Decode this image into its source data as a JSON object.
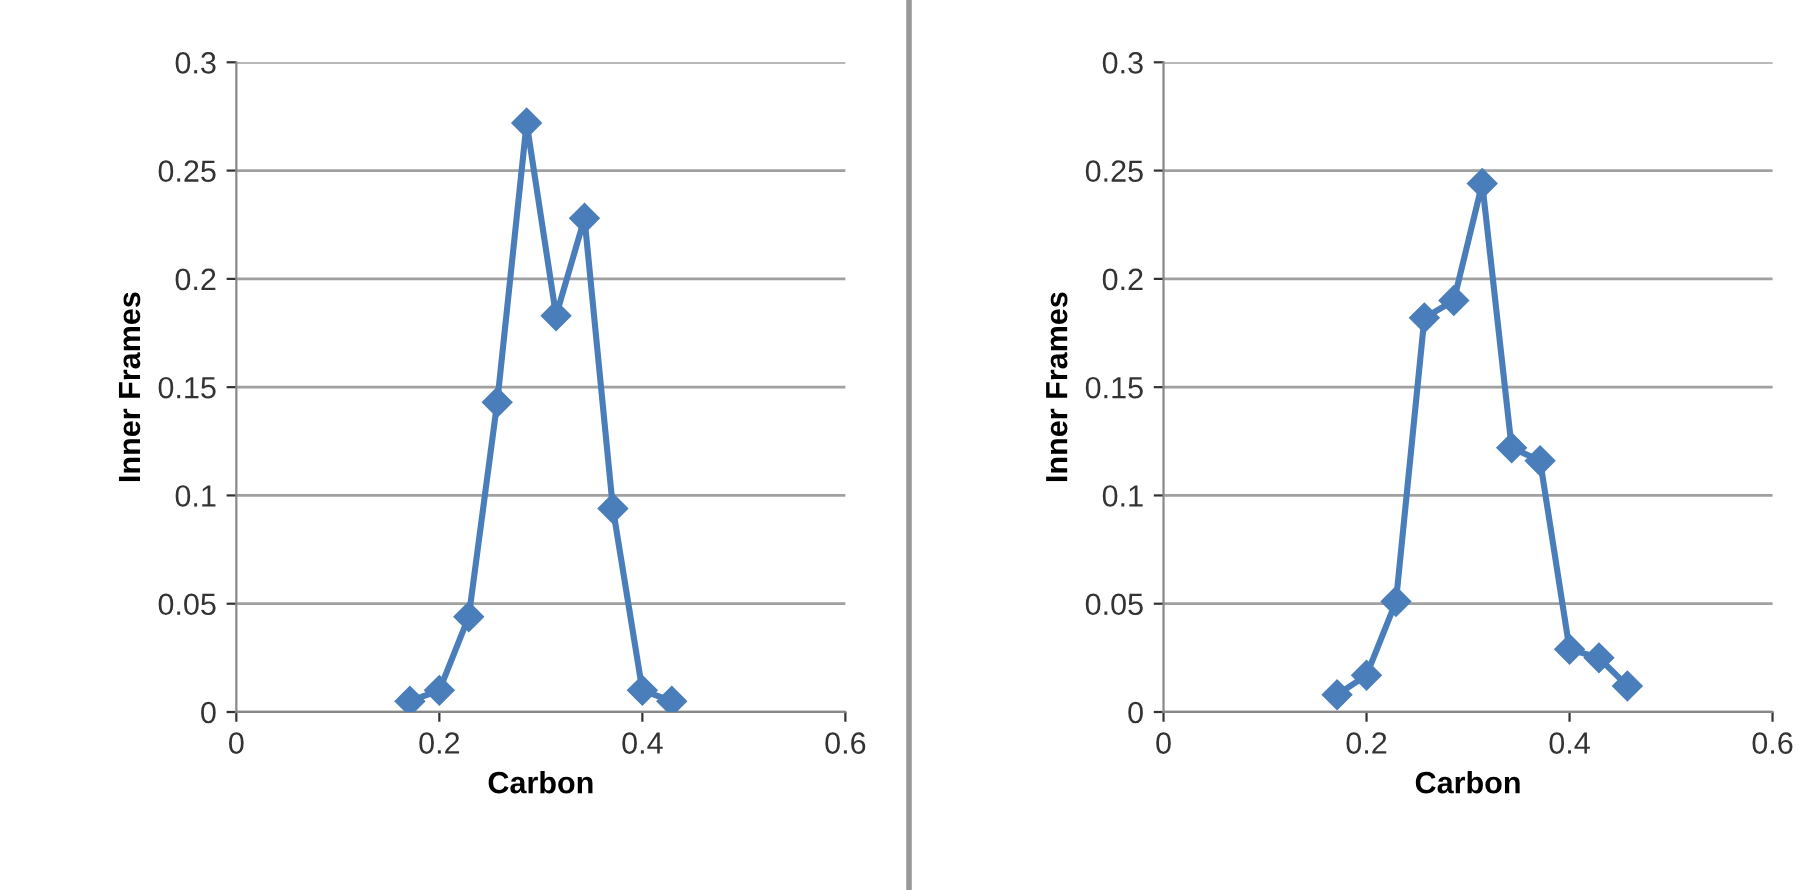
{
  "chart_data": [
    {
      "type": "line",
      "xlabel": "Carbon",
      "ylabel": "Inner Frames",
      "x": [
        0.171,
        0.2,
        0.229,
        0.257,
        0.286,
        0.315,
        0.343,
        0.371,
        0.4,
        0.429
      ],
      "series": [
        {
          "color": "#4a7ebb",
          "values": [
            0.005,
            0.01,
            0.044,
            0.143,
            0.272,
            0.183,
            0.228,
            0.094,
            0.01,
            0.005
          ]
        }
      ],
      "xlim": [
        0,
        0.6
      ],
      "xticks": [
        0,
        0.2,
        0.4,
        0.6
      ],
      "ylim": [
        0,
        0.3
      ],
      "yticks": [
        0,
        0.05,
        0.1,
        0.15,
        0.2,
        0.25,
        0.3
      ],
      "grid": "y",
      "marker": "diamond",
      "line_style": "solid"
    },
    {
      "type": "line",
      "xlabel": "Carbon",
      "ylabel": "Inner Frames",
      "x": [
        0.171,
        0.2,
        0.229,
        0.257,
        0.286,
        0.314,
        0.343,
        0.371,
        0.4,
        0.429,
        0.457
      ],
      "series": [
        {
          "color": "#4a7ebb",
          "values": [
            0.008,
            0.017,
            0.051,
            0.182,
            0.19,
            0.244,
            0.122,
            0.116,
            0.029,
            0.025,
            0.012
          ]
        }
      ],
      "xlim": [
        0,
        0.6
      ],
      "xticks": [
        0,
        0.2,
        0.4,
        0.6
      ],
      "ylim": [
        0,
        0.3
      ],
      "yticks": [
        0,
        0.05,
        0.1,
        0.15,
        0.2,
        0.25,
        0.3
      ],
      "grid": "y",
      "marker": "diamond",
      "line_style": "solid"
    }
  ]
}
